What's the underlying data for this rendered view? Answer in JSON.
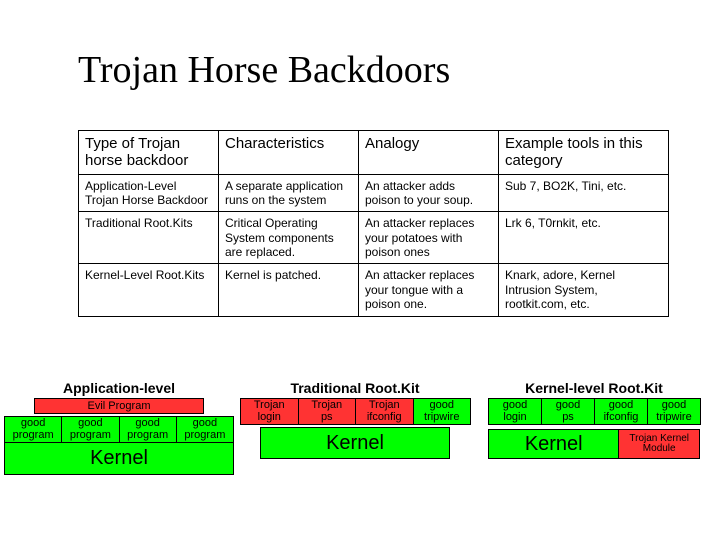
{
  "title": "Trojan Horse Backdoors",
  "colors": {
    "background": "#ffffff",
    "text": "#000000",
    "border": "#000000",
    "evil_bg": "#ff3333",
    "good_bg": "#00ff00"
  },
  "table": {
    "headers": [
      "Type of Trojan horse backdoor",
      "Characteristics",
      "Analogy",
      "Example tools in this category"
    ],
    "rows": [
      [
        "Application-Level Trojan Horse Backdoor",
        "A separate application runs on the system",
        "An attacker adds poison to your soup.",
        "Sub 7, BO2K, Tini, etc."
      ],
      [
        "Traditional Root.Kits",
        "Critical Operating System components are replaced.",
        "An attacker replaces your potatoes with poison ones",
        "Lrk 6, T0rnkit, etc."
      ],
      [
        "Kernel-Level Root.Kits",
        "Kernel is patched.",
        "An attacker replaces your tongue with a poison one.",
        "Knark, adore, Kernel Intrusion System, rootkit.com, etc."
      ]
    ]
  },
  "diagrams": {
    "app": {
      "title": "Application-level",
      "evil_label": "Evil Program",
      "items": [
        "good program",
        "good program",
        "good program",
        "good program"
      ],
      "kernel": "Kernel"
    },
    "trad": {
      "title": "Traditional Root.Kit",
      "items": [
        {
          "label1": "Trojan",
          "label2": "login",
          "evil": true
        },
        {
          "label1": "Trojan",
          "label2": "ps",
          "evil": true
        },
        {
          "label1": "Trojan",
          "label2": "ifconfig",
          "evil": true
        },
        {
          "label1": "good",
          "label2": "tripwire",
          "evil": false
        }
      ],
      "kernel": "Kernel"
    },
    "kern": {
      "title": "Kernel-level Root.Kit",
      "items": [
        {
          "label1": "good",
          "label2": "login"
        },
        {
          "label1": "good",
          "label2": "ps"
        },
        {
          "label1": "good",
          "label2": "ifconfig"
        },
        {
          "label1": "good",
          "label2": "tripwire"
        }
      ],
      "kernel": "Kernel",
      "module": "Trojan Kernel Module"
    }
  }
}
